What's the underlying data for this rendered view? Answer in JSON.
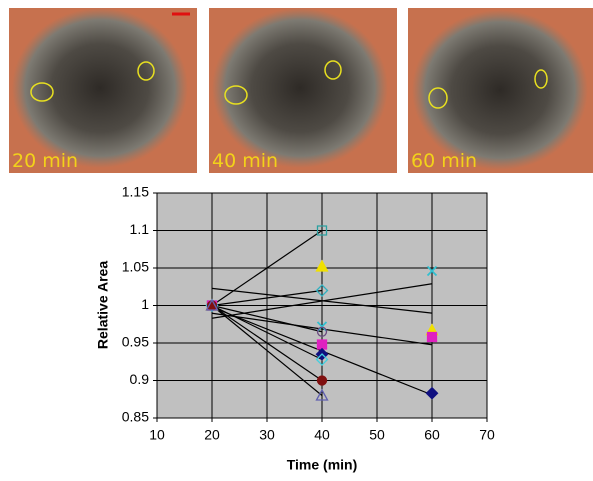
{
  "panels": [
    {
      "label": "20 min"
    },
    {
      "label": "40 min"
    },
    {
      "label": "60 min"
    }
  ],
  "chart_data": {
    "type": "scatter",
    "x_label": "Time (min)",
    "y_label": "Relative Area",
    "xlim": [
      10,
      70
    ],
    "xticks": [
      10,
      20,
      30,
      40,
      50,
      60,
      70
    ],
    "ylim": [
      0.85,
      1.15
    ],
    "yticks": [
      0.85,
      0.9,
      0.95,
      1,
      1.05,
      1.1,
      1.15
    ],
    "grid": true,
    "background": "#c0c0c0",
    "trendlines": true,
    "series": [
      {
        "marker": "square",
        "filled": false,
        "color": "#2aa0a0",
        "x": [
          20,
          40
        ],
        "values": [
          1,
          1.1
        ]
      },
      {
        "marker": "triangle",
        "filled": true,
        "color": "#f0e000",
        "x": [
          20,
          40,
          60
        ],
        "values": [
          1,
          1.052,
          0.967
        ]
      },
      {
        "marker": "diamond",
        "filled": false,
        "color": "#30b0c0",
        "x": [
          20,
          40
        ],
        "values": [
          1,
          1.02
        ]
      },
      {
        "marker": "x",
        "filled": false,
        "color": "#30c0d0",
        "x": [
          20,
          40,
          60
        ],
        "values": [
          1,
          0.972,
          1.046
        ]
      },
      {
        "marker": "circle",
        "filled": false,
        "color": "#6a4a80",
        "x": [
          20,
          40
        ],
        "values": [
          1,
          0.965
        ]
      },
      {
        "marker": "square",
        "filled": true,
        "color": "#e020c0",
        "x": [
          20,
          40,
          60
        ],
        "values": [
          1,
          0.948,
          0.958
        ]
      },
      {
        "marker": "diamond",
        "filled": true,
        "color": "#101080",
        "x": [
          20,
          40,
          60
        ],
        "values": [
          1,
          0.935,
          0.883
        ]
      },
      {
        "marker": "diamond",
        "filled": false,
        "color": "#40d0e0",
        "x": [
          20,
          40
        ],
        "values": [
          1,
          0.928
        ]
      },
      {
        "marker": "circle",
        "filled": true,
        "color": "#801010",
        "x": [
          20,
          40
        ],
        "values": [
          1,
          0.9
        ]
      },
      {
        "marker": "triangle",
        "filled": false,
        "color": "#6060b0",
        "x": [
          20,
          40
        ],
        "values": [
          1,
          0.88
        ]
      }
    ]
  }
}
